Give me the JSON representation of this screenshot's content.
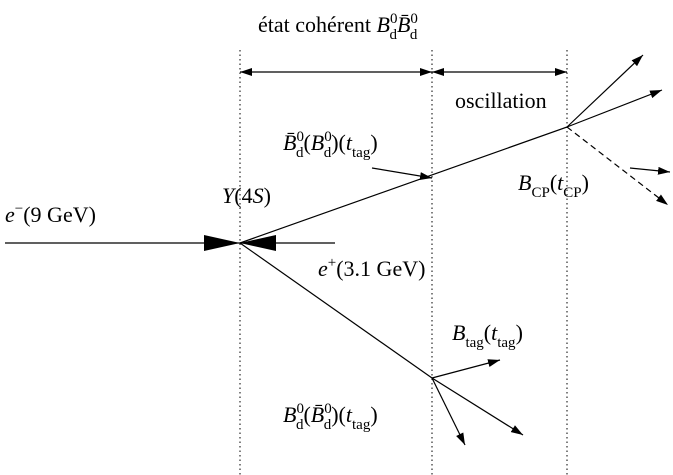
{
  "labels": [
    {
      "parts": [
        {
          "t": "état cohérent ",
          "s": "r"
        },
        {
          "t": "B",
          "s": "i"
        },
        {
          "t": "0",
          "s": "sup"
        },
        {
          "t": "d",
          "s": "sub"
        },
        {
          "t": "B̄",
          "s": "i"
        },
        {
          "t": "0",
          "s": "sup"
        },
        {
          "t": "d",
          "s": "sub"
        }
      ]
    },
    {
      "parts": [
        {
          "t": "oscillation",
          "s": "r"
        }
      ]
    },
    {
      "parts": [
        {
          "t": "B̄",
          "s": "i"
        },
        {
          "t": "0",
          "s": "sup"
        },
        {
          "t": "d",
          "s": "sub"
        },
        {
          "t": "(",
          "s": "r"
        },
        {
          "t": "B",
          "s": "i"
        },
        {
          "t": "0",
          "s": "sup"
        },
        {
          "t": "d",
          "s": "sub"
        },
        {
          "t": ")(",
          "s": "r"
        },
        {
          "t": "t",
          "s": "i"
        },
        {
          "t": "tag",
          "s": "sub"
        },
        {
          "t": ")",
          "s": "r"
        }
      ]
    },
    {
      "parts": [
        {
          "t": "B",
          "s": "i"
        },
        {
          "t": "CP",
          "s": "sub"
        },
        {
          "t": "(",
          "s": "r"
        },
        {
          "t": "t",
          "s": "i"
        },
        {
          "t": "CP",
          "s": "sub"
        },
        {
          "t": ")",
          "s": "r"
        }
      ]
    },
    {
      "parts": [
        {
          "t": "Υ",
          "s": "i"
        },
        {
          "t": "(4",
          "s": "r"
        },
        {
          "t": "S",
          "s": "i"
        },
        {
          "t": ")",
          "s": "r"
        }
      ]
    },
    {
      "parts": [
        {
          "t": "e",
          "s": "i"
        },
        {
          "t": "−",
          "s": "sup"
        },
        {
          "t": "(9 GeV)",
          "s": "r"
        }
      ]
    },
    {
      "parts": [
        {
          "t": "e",
          "s": "i"
        },
        {
          "t": "+",
          "s": "sup"
        },
        {
          "t": "(3.1 GeV)",
          "s": "r"
        }
      ]
    },
    {
      "parts": [
        {
          "t": "B",
          "s": "i"
        },
        {
          "t": "tag",
          "s": "sub"
        },
        {
          "t": "(",
          "s": "r"
        },
        {
          "t": "t",
          "s": "i"
        },
        {
          "t": "tag",
          "s": "sub"
        },
        {
          "t": ")",
          "s": "r"
        }
      ]
    },
    {
      "parts": [
        {
          "t": "B",
          "s": "i"
        },
        {
          "t": "0",
          "s": "sup"
        },
        {
          "t": "d",
          "s": "sub"
        },
        {
          "t": "(",
          "s": "r"
        },
        {
          "t": "B̄",
          "s": "i"
        },
        {
          "t": "0",
          "s": "sup"
        },
        {
          "t": "d",
          "s": "sub"
        },
        {
          "t": ")(",
          "s": "r"
        },
        {
          "t": "t",
          "s": "i"
        },
        {
          "t": "tag",
          "s": "sub"
        },
        {
          "t": ")",
          "s": "r"
        }
      ]
    }
  ]
}
